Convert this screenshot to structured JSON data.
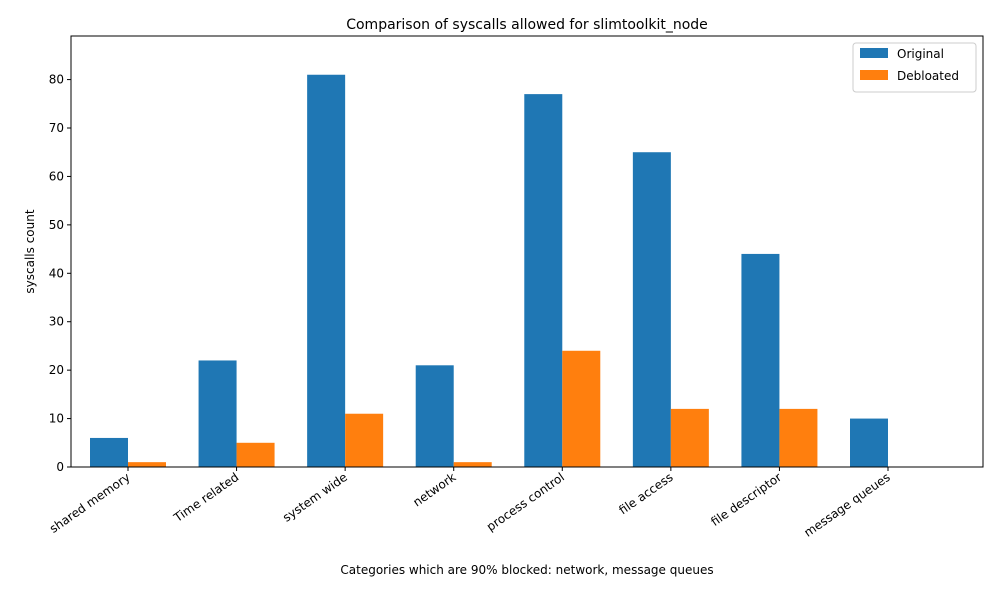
{
  "chart_data": {
    "type": "bar",
    "title": "Comparison of syscalls allowed for slimtoolkit_node",
    "xlabel": "Categories which are 90% blocked: network, message queues",
    "ylabel": "syscalls count",
    "categories": [
      "shared memory",
      "Time related",
      "system wide",
      "network",
      "process control",
      "file access",
      "file descriptor",
      "message queues"
    ],
    "series": [
      {
        "name": "Original",
        "color": "#1f77b4",
        "values": [
          6,
          22,
          81,
          21,
          77,
          65,
          44,
          10
        ]
      },
      {
        "name": "Debloated",
        "color": "#ff7f0e",
        "values": [
          1,
          5,
          11,
          1,
          24,
          12,
          12,
          0
        ]
      }
    ],
    "ylim": [
      0,
      89
    ],
    "yticks": [
      0,
      10,
      20,
      30,
      40,
      50,
      60,
      70,
      80
    ],
    "legend_position": "top-right",
    "grid": false
  }
}
